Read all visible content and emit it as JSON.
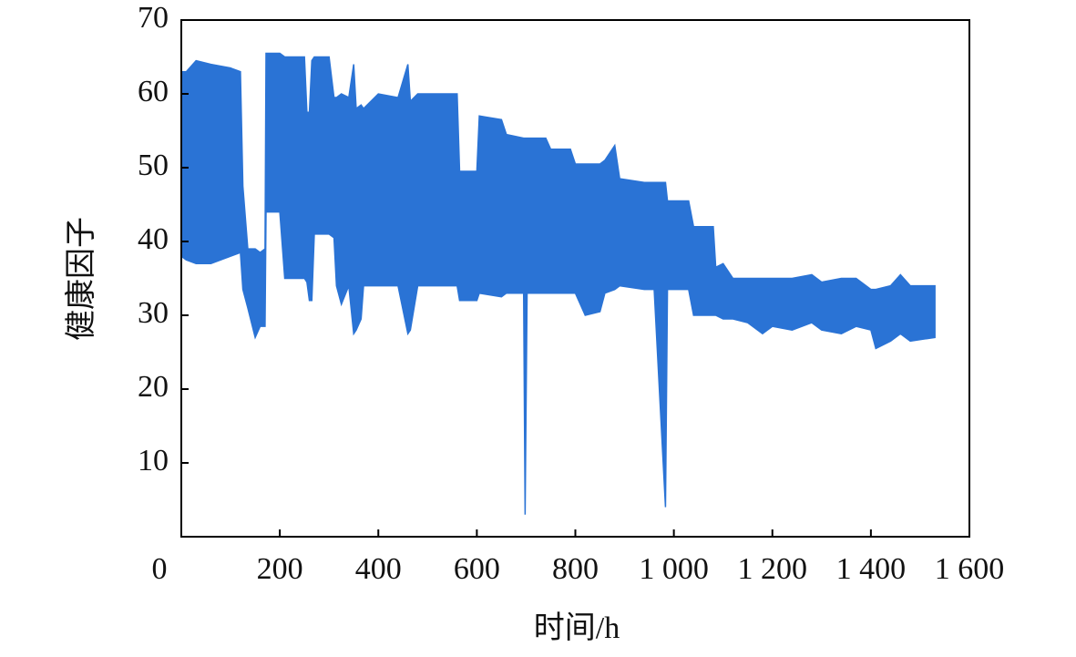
{
  "chart_data": {
    "type": "band",
    "xlabel": "时间/h",
    "ylabel": "健康因子",
    "color": "#2a73d5",
    "xlim": [
      0,
      1600
    ],
    "ylim": [
      0,
      70
    ],
    "xticks": [
      0,
      200,
      400,
      600,
      800,
      {
        "value": 1000,
        "label": "1 000"
      },
      {
        "value": 1200,
        "label": "1 200"
      },
      {
        "value": 1400,
        "label": "1 400"
      },
      {
        "value": 1600,
        "label": "1 600"
      }
    ],
    "yticks": [
      10,
      20,
      30,
      40,
      50,
      60,
      70
    ],
    "x": [
      0,
      10,
      30,
      60,
      100,
      120,
      125,
      135,
      150,
      160,
      170,
      172,
      200,
      210,
      250,
      255,
      260,
      265,
      270,
      300,
      310,
      315,
      325,
      340,
      350,
      355,
      365,
      370,
      400,
      440,
      460,
      465,
      480,
      520,
      560,
      565,
      600,
      605,
      650,
      660,
      695,
      698,
      702,
      740,
      750,
      790,
      800,
      820,
      850,
      860,
      880,
      890,
      940,
      960,
      983,
      987,
      1000,
      1030,
      1040,
      1080,
      1085,
      1100,
      1120,
      1150,
      1180,
      1200,
      1240,
      1280,
      1300,
      1340,
      1370,
      1400,
      1410,
      1440,
      1460,
      1480,
      1530
    ],
    "upper": [
      63,
      63,
      64.5,
      64,
      63.5,
      63,
      47.5,
      39,
      39,
      38.5,
      39,
      65.5,
      65.5,
      65,
      65,
      57.5,
      57.5,
      64.5,
      65,
      65,
      59.5,
      59.5,
      60,
      59.5,
      64,
      58,
      58.5,
      58,
      60,
      59.5,
      64,
      59,
      60,
      60,
      60,
      49.5,
      49.5,
      57,
      56.5,
      54.5,
      54,
      54,
      54,
      54,
      52.5,
      52.5,
      50.5,
      50.5,
      50.5,
      51,
      53,
      48.5,
      48,
      48,
      48,
      45.5,
      45.5,
      45.5,
      42,
      42,
      36.5,
      37,
      35,
      35,
      35,
      35,
      35,
      35.5,
      34.5,
      35,
      35,
      33.5,
      33.5,
      34,
      35.5,
      34,
      34
    ],
    "lower": [
      38,
      37.5,
      37,
      37,
      38,
      38.5,
      33.5,
      31,
      27,
      28.5,
      28.5,
      44,
      44,
      35,
      35,
      34.5,
      32,
      32,
      41,
      41,
      40.5,
      34,
      31.5,
      34,
      27.5,
      28,
      29.5,
      34,
      34,
      34,
      27.5,
      28,
      34,
      34,
      34,
      32,
      32,
      33,
      32.5,
      33,
      33,
      3,
      33,
      33,
      33,
      33,
      33,
      30,
      30.5,
      33,
      33.5,
      34,
      33.5,
      33.5,
      4,
      33.5,
      33.5,
      33.5,
      30,
      30,
      30,
      29.5,
      29.5,
      29,
      27.5,
      28.5,
      28,
      29,
      28,
      27.5,
      28.5,
      28,
      25.5,
      26.5,
      27.5,
      26.5,
      27
    ]
  }
}
